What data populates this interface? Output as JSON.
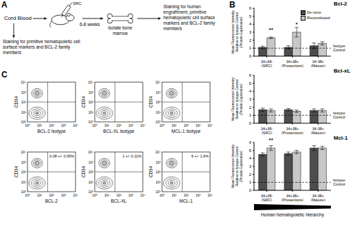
{
  "panel_A": {
    "label": "A",
    "source": "Cord Blood",
    "injected": "SRC",
    "time": "6-8 weeks",
    "step": "Isolate bone marrow",
    "stain_before": "Staining for primitive hematopoietic cell surface markers and BCL-2 family members",
    "stain_after": "Staining for human engraftment, primitive hematopoietic cell surface markers and BCL-2 family members"
  },
  "panel_B": {
    "label": "B",
    "hierarchy_label": "Human hematopoietic hierarchy"
  },
  "chart_data": [
    {
      "type": "bar",
      "title": "Bcl-2",
      "ylabel": "Mean Fluorescence Intensity Relative to Isotype Control (Protein Expression)",
      "categories": [
        "34+38- (SRC)",
        "34+38+ (Progenitors)",
        "34-38+ (Mature)"
      ],
      "series": [
        {
          "name": "De novo",
          "color": "#4d4d4d",
          "values": [
            1.1,
            1.1,
            1.3
          ],
          "errors": [
            0.15,
            0.2,
            0.35
          ]
        },
        {
          "name": "Reconstituted",
          "color": "#c8c8c8",
          "values": [
            2.3,
            3.0,
            1.6
          ],
          "errors": [
            0.1,
            0.6,
            0.2
          ]
        }
      ],
      "ylim": [
        0,
        6
      ],
      "yticks": [
        0,
        1,
        2,
        3,
        4,
        5,
        6
      ],
      "reference_line": {
        "value": 1,
        "label": "Isotype Control"
      },
      "annotations": [
        {
          "series": "Reconstituted",
          "category": "34+38- (SRC)",
          "text": "**"
        },
        {
          "series": "Reconstituted",
          "category": "34+38+ (Progenitors)",
          "text": "*"
        }
      ],
      "legend": "upper right"
    },
    {
      "type": "bar",
      "title": "Bcl-xL",
      "ylabel": "Mean Fluorescence Intensity Relative to Isotype Control (Protein Expression)",
      "categories": [
        "34+38- (SRC)",
        "34+38+ (Progenitors)",
        "34-38+ (Mature)"
      ],
      "series": [
        {
          "name": "De novo",
          "color": "#4d4d4d",
          "values": [
            1.7,
            1.7,
            1.6
          ],
          "errors": [
            0.2,
            0.15,
            0.2
          ]
        },
        {
          "name": "Reconstituted",
          "color": "#c8c8c8",
          "values": [
            1.6,
            1.5,
            1.6
          ],
          "errors": [
            0.2,
            0.15,
            0.2
          ]
        }
      ],
      "ylim": [
        0,
        6
      ],
      "yticks": [
        0,
        1,
        2,
        3,
        4,
        5,
        6
      ],
      "reference_line": {
        "value": 1,
        "label": "Isotype Control"
      }
    },
    {
      "type": "bar",
      "title": "Mcl-1",
      "ylabel": "Mean Fluorescence Intensity Relative to Isotype Control (Protein Expression)",
      "categories": [
        "34+38- (SRC)",
        "34+38+ (Progenitors)",
        "34-38+ (Mature)"
      ],
      "series": [
        {
          "name": "De novo",
          "color": "#4d4d4d",
          "values": [
            4.5,
            4.6,
            5.3
          ],
          "errors": [
            0.2,
            0.2,
            0.3
          ]
        },
        {
          "name": "Reconstituted",
          "color": "#c8c8c8",
          "values": [
            5.3,
            4.8,
            5.3
          ],
          "errors": [
            0.3,
            0.2,
            0.2
          ]
        }
      ],
      "ylim": [
        0,
        6
      ],
      "yticks": [
        0,
        1,
        2,
        3,
        4,
        5,
        6
      ],
      "reference_line": {
        "value": 1,
        "label": "Isotype Control"
      },
      "annotations": [
        {
          "series": "Reconstituted",
          "category": "34+38- (SRC)",
          "text": "**"
        }
      ]
    }
  ],
  "panel_C": {
    "label": "C",
    "y_label": "CD34",
    "axis_ticks": [
      "10⁰",
      "10¹",
      "10²",
      "10³",
      "10⁴"
    ],
    "plots": [
      {
        "x_label": "BCL-2 Isotype"
      },
      {
        "x_label": "BCL-XL Isotype"
      },
      {
        "x_label": "MCL-1 Isotype"
      },
      {
        "x_label": "BCL-2",
        "quadrant_text": "0.08 +/- 0.05%"
      },
      {
        "x_label": "BCL-XL",
        "quadrant_text": "1 +/- 0.11%"
      },
      {
        "x_label": "MCL-1",
        "quadrant_text": "6 +/- 1.6%"
      }
    ]
  }
}
